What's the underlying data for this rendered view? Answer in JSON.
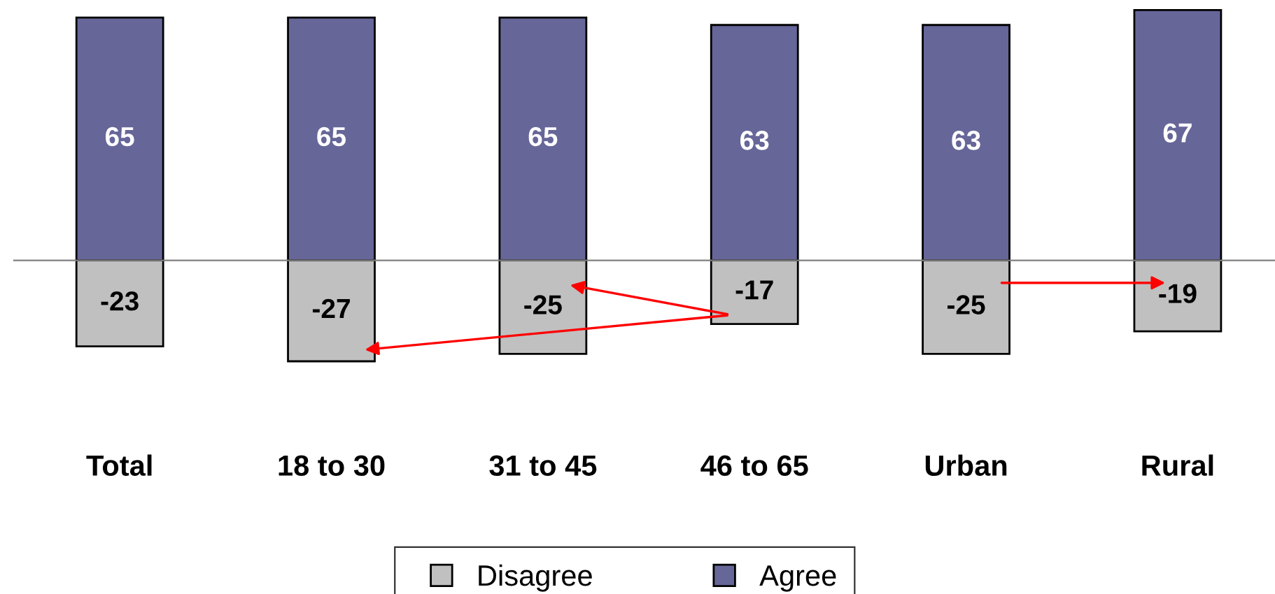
{
  "chart_data": {
    "type": "bar",
    "stacked": true,
    "categories": [
      "Total",
      "18 to 30",
      "31 to 45",
      "46 to 65",
      "Urban",
      "Rural"
    ],
    "series": [
      {
        "name": "Disagree",
        "color": "#c0c0c0",
        "values": [
          -23,
          -27,
          -25,
          -17,
          -25,
          -19
        ]
      },
      {
        "name": "Agree",
        "color": "#666699",
        "values": [
          65,
          65,
          65,
          63,
          63,
          67
        ]
      }
    ],
    "tick_labels": "x",
    "data_labels": true,
    "legend": "bottom",
    "grid": false
  }
}
